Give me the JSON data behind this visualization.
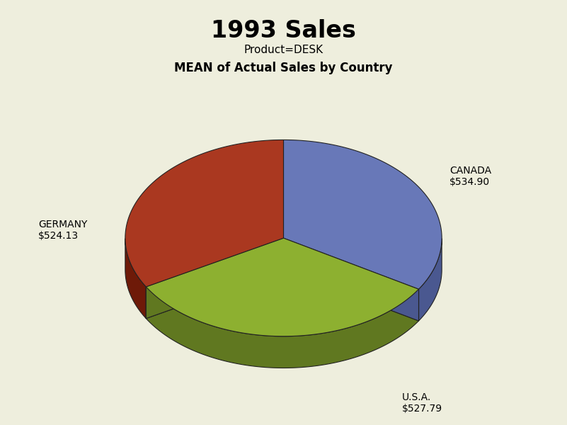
{
  "title": "1993 Sales",
  "subtitle1": "Product=DESK",
  "subtitle2": "MEAN of Actual Sales by Country",
  "labels": [
    "CANADA",
    "GERMANY",
    "U.S.A."
  ],
  "values": [
    534.9,
    524.13,
    527.79
  ],
  "colors_top": [
    "#6878b8",
    "#8db030",
    "#aa3820"
  ],
  "colors_side": [
    "#4a5890",
    "#607820",
    "#6e1a08"
  ],
  "background_color": "#eeeedd",
  "title_fontsize": 24,
  "subtitle1_fontsize": 11,
  "subtitle2_fontsize": 12,
  "label_fontsize": 10
}
